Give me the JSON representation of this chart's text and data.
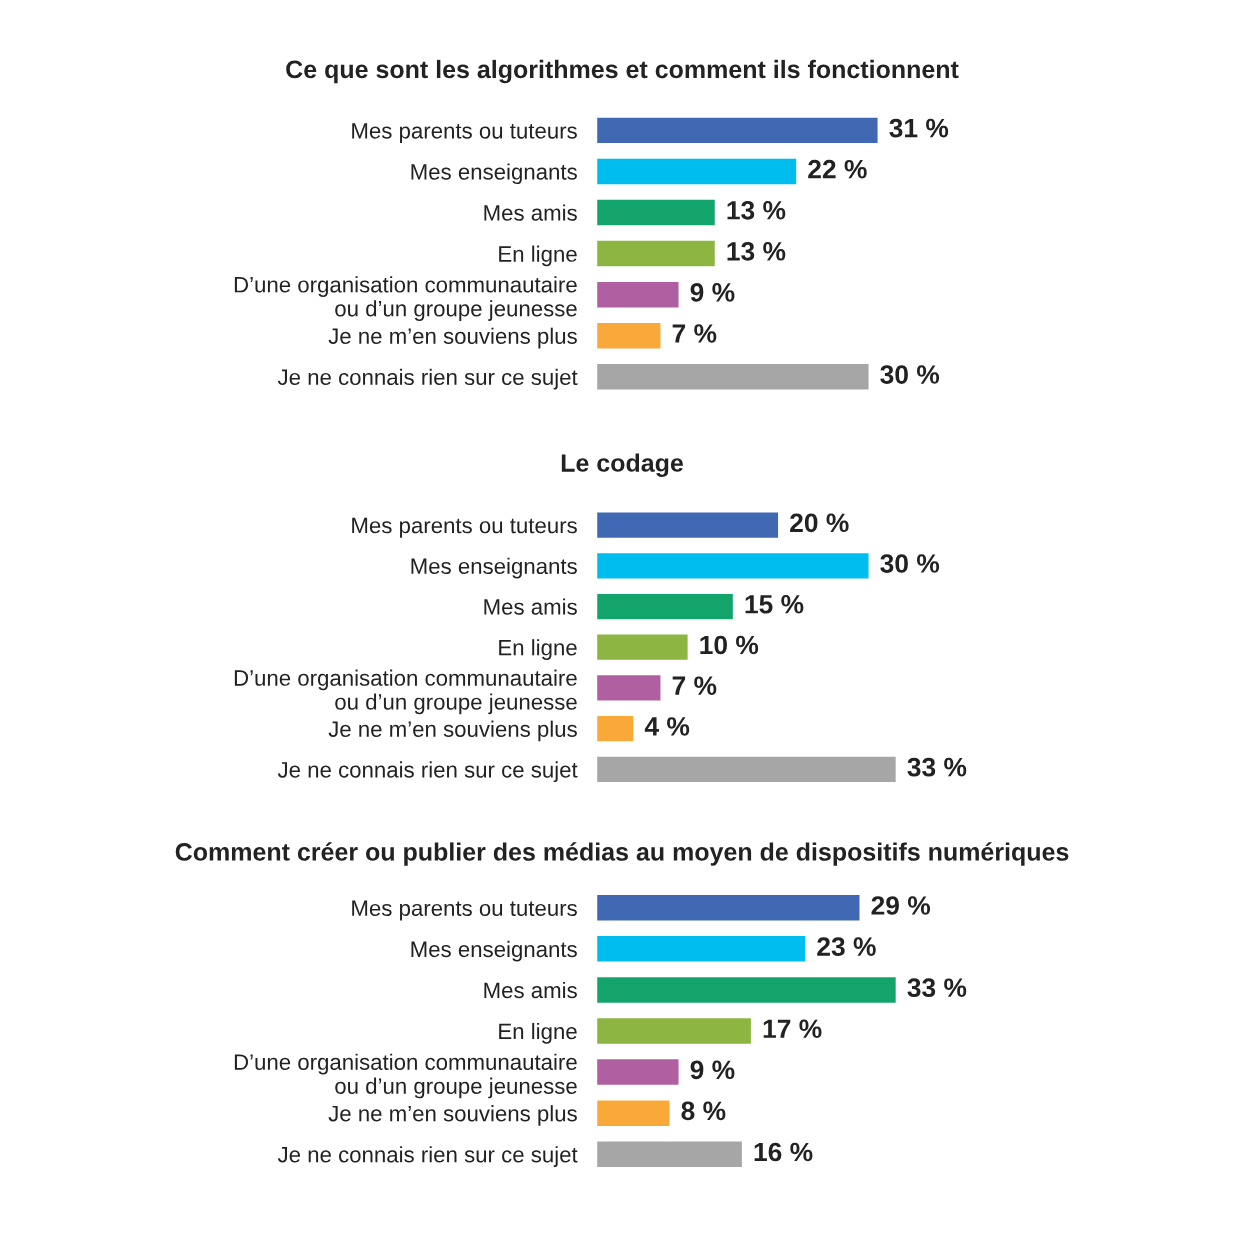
{
  "chart_data": [
    {
      "type": "bar",
      "orientation": "horizontal",
      "title": "Ce que sont les algorithmes et comment ils fonctionnent",
      "categories": [
        "Mes parents ou tuteurs",
        "Mes enseignants",
        "Mes amis",
        "En ligne",
        "D’une organisation communautaire\nou d’un groupe jeunesse",
        "Je ne m’en souviens plus",
        "Je ne connais rien sur ce sujet"
      ],
      "values": [
        31,
        22,
        13,
        13,
        9,
        7,
        30
      ],
      "value_labels": [
        "31 %",
        "22 %",
        "13 %",
        "13 %",
        "9 %",
        "7 %",
        "30 %"
      ],
      "colors": [
        "#4169b3",
        "#00bdf0",
        "#13a46b",
        "#8db542",
        "#b060a0",
        "#f9a93a",
        "#a6a6a6"
      ]
    },
    {
      "type": "bar",
      "orientation": "horizontal",
      "title": "Le codage",
      "categories": [
        "Mes parents ou tuteurs",
        "Mes enseignants",
        "Mes amis",
        "En ligne",
        "D’une organisation communautaire\nou d’un groupe jeunesse",
        "Je ne m’en souviens plus",
        "Je ne connais rien sur ce sujet"
      ],
      "values": [
        20,
        30,
        15,
        10,
        7,
        4,
        33
      ],
      "value_labels": [
        "20 %",
        "30 %",
        "15 %",
        "10 %",
        "7 %",
        "4 %",
        "33 %"
      ],
      "colors": [
        "#4169b3",
        "#00bdf0",
        "#13a46b",
        "#8db542",
        "#b060a0",
        "#f9a93a",
        "#a6a6a6"
      ]
    },
    {
      "type": "bar",
      "orientation": "horizontal",
      "title": "Comment créer ou publier des médias au moyen de dispositifs numériques",
      "categories": [
        "Mes parents ou tuteurs",
        "Mes enseignants",
        "Mes amis",
        "En ligne",
        "D’une organisation communautaire\nou d’un groupe jeunesse",
        "Je ne m’en souviens plus",
        "Je ne connais rien sur ce sujet"
      ],
      "values": [
        29,
        23,
        33,
        17,
        9,
        8,
        16
      ],
      "value_labels": [
        "29 %",
        "23 %",
        "33 %",
        "17 %",
        "9 %",
        "8 %",
        "16 %"
      ],
      "colors": [
        "#4169b3",
        "#00bdf0",
        "#13a46b",
        "#8db542",
        "#b060a0",
        "#f9a93a",
        "#a6a6a6"
      ]
    }
  ]
}
